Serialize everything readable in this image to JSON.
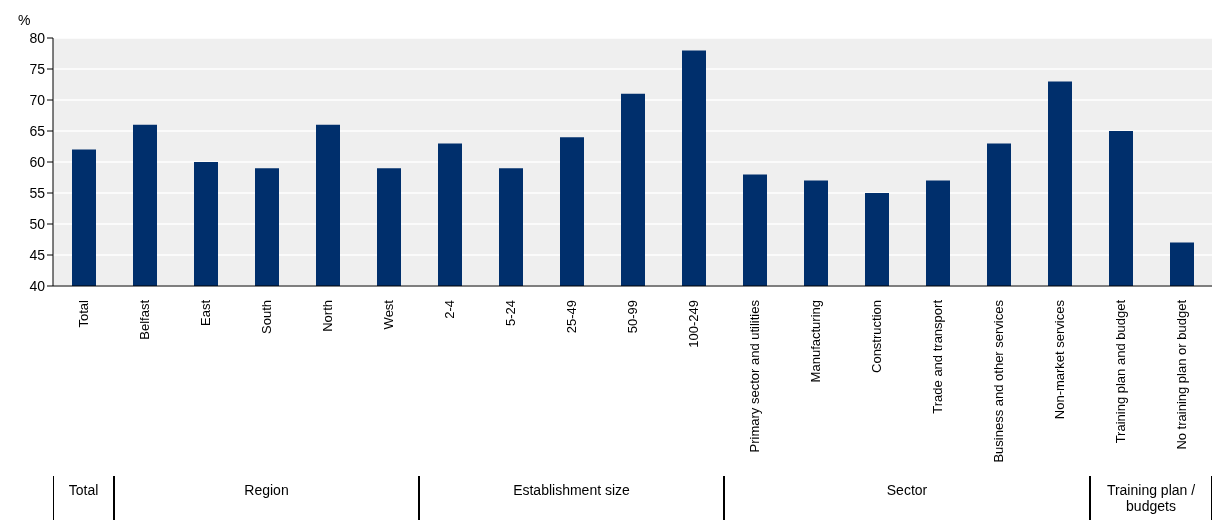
{
  "chart_data": {
    "type": "bar",
    "ylabel": "%",
    "categories": [
      "Total",
      "Belfast",
      "East",
      "South",
      "North",
      "West",
      "2-4",
      "5-24",
      "25-49",
      "50-99",
      "100-249",
      "Primary sector and utilities",
      "Manufacturing",
      "Construction",
      "Trade and transport",
      "Business and other services",
      "Non-market services",
      "Training plan and budget",
      "No training plan or budget"
    ],
    "values": [
      62,
      66,
      60,
      59,
      66,
      59,
      63,
      59,
      64,
      71,
      78,
      58,
      57,
      55,
      57,
      63,
      73,
      65,
      47
    ],
    "color": "#002f6c",
    "ylim": [
      40,
      80
    ],
    "yticks": [
      40,
      45,
      50,
      55,
      60,
      65,
      70,
      75,
      80
    ],
    "grid": "y",
    "annotations": [
      "Total",
      "Region",
      "Establishment size",
      "Sector",
      "Training plan / budgets"
    ]
  }
}
